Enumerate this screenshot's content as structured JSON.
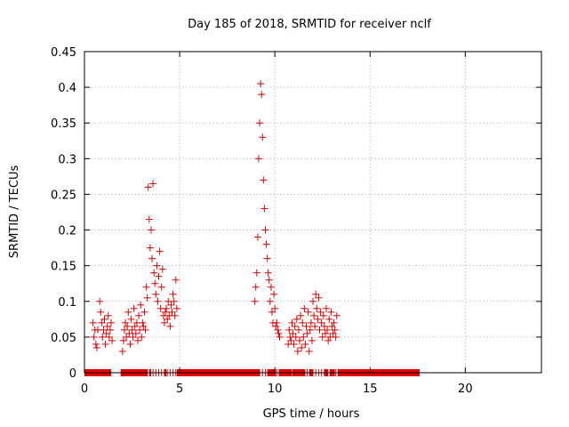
{
  "chart_data": {
    "type": "scatter",
    "title": "Day 185 of 2018, SRMTID for receiver nclf",
    "xlabel": "GPS time / hours",
    "ylabel": "SRMTID / TECUs",
    "xlim": [
      0,
      24
    ],
    "ylim": [
      0,
      0.45
    ],
    "x_ticks": [
      0,
      5,
      10,
      15,
      20
    ],
    "y_ticks": [
      0,
      0.05,
      0.1,
      0.15,
      0.2,
      0.25,
      0.3,
      0.35,
      0.4,
      0.45
    ],
    "x_tick_labels": [
      "0",
      "5",
      "10",
      "15",
      "20"
    ],
    "y_tick_labels": [
      "0",
      "0.05",
      "0.1",
      "0.15",
      "0.2",
      "0.25",
      "0.3",
      "0.35",
      "0.4",
      "0.45"
    ],
    "grid": true,
    "marker": "+",
    "color": "#e00000",
    "series": [
      {
        "x": [
          0.45,
          0.5,
          0.55,
          0.6,
          0.65,
          0.7,
          0.8,
          0.85,
          0.9,
          0.95,
          1.0,
          1.05,
          1.1,
          1.15,
          1.2,
          1.25,
          1.3,
          1.35,
          1.4,
          1.45,
          2.0,
          2.05,
          2.1,
          2.15,
          2.2,
          2.25,
          2.3,
          2.35,
          2.4,
          2.45,
          2.5,
          2.55,
          2.6,
          2.65,
          2.7,
          2.75,
          2.8,
          2.85,
          2.9,
          2.95,
          3.0,
          3.05,
          3.1,
          3.15,
          3.2,
          3.25,
          3.3,
          3.35,
          3.4,
          3.45,
          3.5,
          3.55,
          3.6,
          3.65,
          3.7,
          3.75,
          3.8,
          3.85,
          3.9,
          3.95,
          4.0,
          4.05,
          4.1,
          4.15,
          4.2,
          4.25,
          4.3,
          4.35,
          4.4,
          4.45,
          4.5,
          4.55,
          4.6,
          4.65,
          4.7,
          4.75,
          4.8,
          4.85,
          8.95,
          9.0,
          9.05,
          9.1,
          9.15,
          9.2,
          9.25,
          9.3,
          9.35,
          9.4,
          9.45,
          9.5,
          9.55,
          9.6,
          9.65,
          9.7,
          9.75,
          9.8,
          9.85,
          9.9,
          9.95,
          10.0,
          10.05,
          10.1,
          10.15,
          10.2,
          10.25,
          10.7,
          10.75,
          10.8,
          10.85,
          10.9,
          10.95,
          11.0,
          11.05,
          11.1,
          11.15,
          11.2,
          11.25,
          11.3,
          11.35,
          11.4,
          11.45,
          11.5,
          11.55,
          11.6,
          11.65,
          11.7,
          11.75,
          11.8,
          11.85,
          11.9,
          11.95,
          12.0,
          12.05,
          12.1,
          12.15,
          12.2,
          12.25,
          12.3,
          12.35,
          12.4,
          12.45,
          12.5,
          12.55,
          12.6,
          12.65,
          12.7,
          12.75,
          12.8,
          12.85,
          12.9,
          12.95,
          13.0,
          13.05,
          13.1,
          13.15,
          13.2,
          13.25,
          0.55,
          0.7,
          0.85,
          1.0,
          1.15,
          1.3,
          2.1,
          2.25,
          2.4,
          2.55,
          2.7,
          2.85,
          3.0,
          3.15,
          3.3,
          3.45,
          3.6,
          3.75,
          3.9,
          4.05,
          4.2,
          4.35,
          4.5,
          4.65,
          4.8,
          9.05,
          9.2,
          9.35,
          9.5,
          9.65,
          9.8,
          9.95,
          10.1,
          10.8,
          10.95,
          11.1,
          11.25,
          11.4,
          11.55,
          11.7,
          11.85,
          12.0,
          12.15,
          12.3,
          12.45,
          12.6,
          12.75,
          12.9,
          13.05,
          13.2
        ],
        "y": [
          0.07,
          0.05,
          0.06,
          0.04,
          0.035,
          0.06,
          0.1,
          0.085,
          0.07,
          0.05,
          0.06,
          0.075,
          0.04,
          0.055,
          0.065,
          0.08,
          0.05,
          0.06,
          0.07,
          0.045,
          0.03,
          0.045,
          0.06,
          0.07,
          0.05,
          0.065,
          0.085,
          0.055,
          0.04,
          0.075,
          0.06,
          0.05,
          0.09,
          0.065,
          0.055,
          0.07,
          0.045,
          0.08,
          0.06,
          0.095,
          0.05,
          0.07,
          0.065,
          0.085,
          0.06,
          0.12,
          0.105,
          0.26,
          0.215,
          0.175,
          0.2,
          0.16,
          0.265,
          0.14,
          0.125,
          0.11,
          0.15,
          0.1,
          0.135,
          0.17,
          0.09,
          0.12,
          0.145,
          0.08,
          0.07,
          0.085,
          0.09,
          0.075,
          0.1,
          0.08,
          0.065,
          0.095,
          0.085,
          0.11,
          0.1,
          0.08,
          0.13,
          0.09,
          0.1,
          0.12,
          0.14,
          0.19,
          0.3,
          0.35,
          0.405,
          0.39,
          0.33,
          0.27,
          0.23,
          0.2,
          0.18,
          0.16,
          0.14,
          0.13,
          0.1,
          0.12,
          0.085,
          0.07,
          0.11,
          0.09,
          0.065,
          0.07,
          0.06,
          0.055,
          0.05,
          0.04,
          0.06,
          0.05,
          0.045,
          0.07,
          0.055,
          0.04,
          0.065,
          0.05,
          0.075,
          0.03,
          0.06,
          0.045,
          0.08,
          0.035,
          0.07,
          0.05,
          0.09,
          0.04,
          0.065,
          0.055,
          0.085,
          0.03,
          0.06,
          0.07,
          0.045,
          0.1,
          0.08,
          0.065,
          0.11,
          0.09,
          0.075,
          0.105,
          0.06,
          0.085,
          0.07,
          0.05,
          0.08,
          0.065,
          0.055,
          0.09,
          0.06,
          0.045,
          0.075,
          0.05,
          0.085,
          0.065,
          0.055,
          0.07,
          0.06,
          0.05,
          0.08,
          0,
          0,
          0,
          0,
          0,
          0,
          0,
          0,
          0,
          0,
          0,
          0,
          0,
          0,
          0,
          0,
          0,
          0,
          0,
          0,
          0,
          0,
          0,
          0,
          0,
          0,
          0,
          0,
          0,
          0,
          0,
          0,
          0,
          0,
          0,
          0,
          0,
          0,
          0,
          0,
          0,
          0,
          0,
          0,
          0,
          0,
          0,
          0,
          0,
          0
        ]
      }
    ],
    "zero_bands": [
      [
        0,
        1.4
      ],
      [
        1.9,
        3.3
      ],
      [
        3.4,
        3.5
      ],
      [
        4.2,
        4.3
      ],
      [
        4.85,
        9.2
      ],
      [
        9.6,
        10.05
      ],
      [
        10.2,
        10.9
      ],
      [
        10.95,
        11.6
      ],
      [
        11.8,
        12.0
      ],
      [
        12.6,
        12.8
      ],
      [
        12.9,
        13.15
      ],
      [
        13.3,
        17.6
      ]
    ]
  }
}
